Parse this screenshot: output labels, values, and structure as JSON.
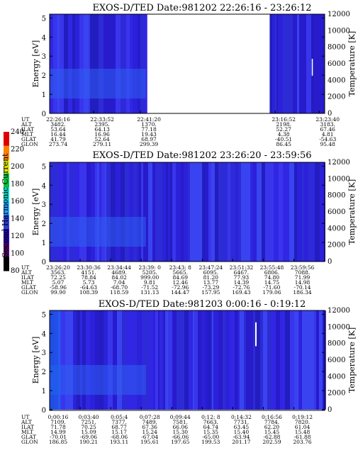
{
  "chart_data": [
    {
      "type": "heatmap",
      "title": "EXOS-D/TED   Date:981202  22:26:16 - 23:26:12",
      "ylabel": "Energy [eV]",
      "y2label": "Temperature [K]",
      "ylim": [
        0,
        5.2
      ],
      "yticks": [
        "0",
        "1",
        "2",
        "3",
        "4",
        "5"
      ],
      "y2ticks": [
        "0",
        "2000",
        "4000",
        "6000",
        "8000",
        "10000",
        "12000"
      ],
      "row_labels": [
        "UT",
        "ALT",
        "ILAT",
        "MLT",
        "GLAT",
        "GLON"
      ],
      "columns": [
        {
          "t": 0.0,
          "v": [
            "22:26:16",
            "3482.",
            "53.64",
            "16.44",
            "41.79",
            "273.74"
          ]
        },
        {
          "t": 0.16,
          "v": [
            "22:33:52",
            "2395.",
            "64.13",
            "16.96",
            "52.64",
            "279.11"
          ]
        },
        {
          "t": 0.33,
          "v": [
            "22:41:20",
            "1370.",
            "77.18",
            "19.43",
            "68.97",
            "299.39"
          ]
        },
        {
          "t": 0.82,
          "v": [
            "23:16:52",
            "2198.",
            "52.27",
            "4.38",
            "-40.51",
            "86.45"
          ]
        },
        {
          "t": 0.98,
          "v": [
            "23:23:40",
            "3183.",
            "67.46",
            "4.81",
            "-54.63",
            "95.48"
          ]
        }
      ],
      "data_gap": [
        0.355,
        0.8
      ]
    },
    {
      "type": "heatmap",
      "title": "EXOS-D/TED   Date:981202  23:26:20 - 23:59:56",
      "ylabel": "Energy [eV]",
      "y2label": "Temperature [K]",
      "ylim": [
        0,
        5.2
      ],
      "yticks": [
        "0",
        "1",
        "2",
        "3",
        "4",
        "5"
      ],
      "y2ticks": [
        "0",
        "2000",
        "4000",
        "6000",
        "8000",
        "10000",
        "12000"
      ],
      "row_labels": [
        "UT",
        "ALT",
        "ILAT",
        "MLT",
        "GLAT",
        "GLON"
      ],
      "columns": [
        {
          "t": 0.0,
          "v": [
            "23:26:20",
            "3563.",
            "72.25",
            "5.07",
            "-58.96",
            "99.90"
          ]
        },
        {
          "t": 0.111,
          "v": [
            "23:30:36",
            "4151.",
            "78.84",
            "5.73",
            "-64.63",
            "108.39"
          ]
        },
        {
          "t": 0.222,
          "v": [
            "23:34:44",
            "4689.",
            "84.02",
            "7.04",
            "-68.70",
            "118.59"
          ]
        },
        {
          "t": 0.333,
          "v": [
            "23:39: 0",
            "5205.",
            "999.00",
            "9.81",
            "-71.52",
            "131.13"
          ]
        },
        {
          "t": 0.444,
          "v": [
            "23:43: 8",
            "5665.",
            "84.69",
            "12.46",
            "-72.96",
            "144.47"
          ]
        },
        {
          "t": 0.555,
          "v": [
            "23:47:24",
            "6095.",
            "81.20",
            "13.77",
            "-73.29",
            "157.95"
          ]
        },
        {
          "t": 0.666,
          "v": [
            "23:51:32",
            "6467.",
            "77.93",
            "14.39",
            "-72.76",
            "169.43"
          ]
        },
        {
          "t": 0.777,
          "v": [
            "23:55:48",
            "6806.",
            "74.80",
            "14.75",
            "-71.60",
            "179.06"
          ]
        },
        {
          "t": 0.888,
          "v": [
            "23:59:56",
            "7088.",
            "71.99",
            "14.98",
            "-70.14",
            "186.34"
          ]
        }
      ]
    },
    {
      "type": "heatmap",
      "title": "EXOS-D/TED   Date:981203  0:00:16 - 0:19:12",
      "ylabel": "Energy [eV]",
      "y2label": "Temperature [K]",
      "ylim": [
        0,
        5.2
      ],
      "yticks": [
        "0",
        "1",
        "2",
        "3",
        "4",
        "5"
      ],
      "y2ticks": [
        "0",
        "2000",
        "4000",
        "6000",
        "8000",
        "10000",
        "12000"
      ],
      "row_labels": [
        "UT",
        "ALT",
        "ILAT",
        "MLT",
        "GLAT",
        "GLON"
      ],
      "columns": [
        {
          "t": 0.0,
          "v": [
            "0:00:16",
            "7109.",
            "71.78",
            "14.99",
            "-70.01",
            "186.85"
          ]
        },
        {
          "t": 0.111,
          "v": [
            "0:03:40",
            "7251.",
            "70.25",
            "15.09",
            "-69.06",
            "190.21"
          ]
        },
        {
          "t": 0.222,
          "v": [
            "0:05:4",
            "7377.",
            "68.77",
            "15.17",
            "-68.06",
            "193.11"
          ]
        },
        {
          "t": 0.333,
          "v": [
            "0:07:28",
            "7489.",
            "67.36",
            "15.24",
            "-67.04",
            "195.61"
          ]
        },
        {
          "t": 0.444,
          "v": [
            "0:09:44",
            "7581.",
            "66.06",
            "15.30",
            "-66.06",
            "197.65"
          ]
        },
        {
          "t": 0.555,
          "v": [
            "0:12: 8",
            "7663.",
            "64.74",
            "15.35",
            "-65.00",
            "199.53"
          ]
        },
        {
          "t": 0.666,
          "v": [
            "0:14:32",
            "7731.",
            "63.45",
            "15.40",
            "-63.94",
            "201.17"
          ]
        },
        {
          "t": 0.777,
          "v": [
            "0:16:56",
            "7784.",
            "62.20",
            "15.45",
            "-62.88",
            "202.59"
          ]
        },
        {
          "t": 0.888,
          "v": [
            "0:19:12",
            "7820.",
            "61.04",
            "15.48",
            "-61.88",
            "203.76"
          ]
        }
      ]
    }
  ],
  "colorbar": {
    "label": "Second Harmonic Current",
    "ticks": [
      "80",
      "100",
      "120",
      "140",
      "160",
      "180",
      "200",
      "220",
      "240"
    ],
    "colors": [
      "#000000",
      "#4b0066",
      "#2200aa",
      "#2a3cd6",
      "#1ea0ff",
      "#00d6c8",
      "#00c040",
      "#d8e000",
      "#ff8000",
      "#e00000"
    ]
  },
  "colors": {
    "background_field": "#3a2ee0",
    "band": "#2f5ef0",
    "gap": "#ffffff"
  }
}
